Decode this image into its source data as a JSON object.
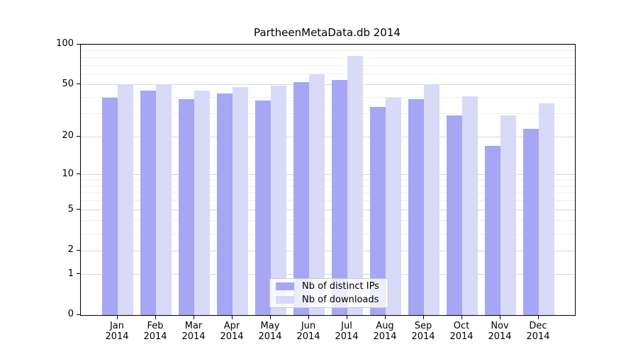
{
  "title": "PartheenMetaData.db 2014",
  "chart_data": {
    "type": "bar",
    "title": "PartheenMetaData.db 2014",
    "categories": [
      "Jan 2014",
      "Feb 2014",
      "Mar 2014",
      "Apr 2014",
      "May 2014",
      "Jun 2014",
      "Jul 2014",
      "Aug 2014",
      "Sep 2014",
      "Oct 2014",
      "Nov 2014",
      "Dec 2014"
    ],
    "series": [
      {
        "name": "Nb of distinct IPs",
        "color": "#a6a6f4",
        "values": [
          40,
          45,
          39,
          43,
          38,
          52,
          54,
          34,
          39,
          29,
          17,
          23
        ]
      },
      {
        "name": "Nb of downloads",
        "color": "#d9d9f8",
        "values": [
          50,
          50,
          45,
          48,
          49,
          60,
          82,
          40,
          50,
          41,
          29,
          36
        ]
      }
    ],
    "xlabel": "",
    "ylabel": "",
    "yscale": "log1p",
    "yticks": [
      0,
      1,
      2,
      5,
      10,
      20,
      50,
      100
    ],
    "ylim": [
      0,
      100
    ],
    "grid": true,
    "legend_position": "lower center inside"
  }
}
